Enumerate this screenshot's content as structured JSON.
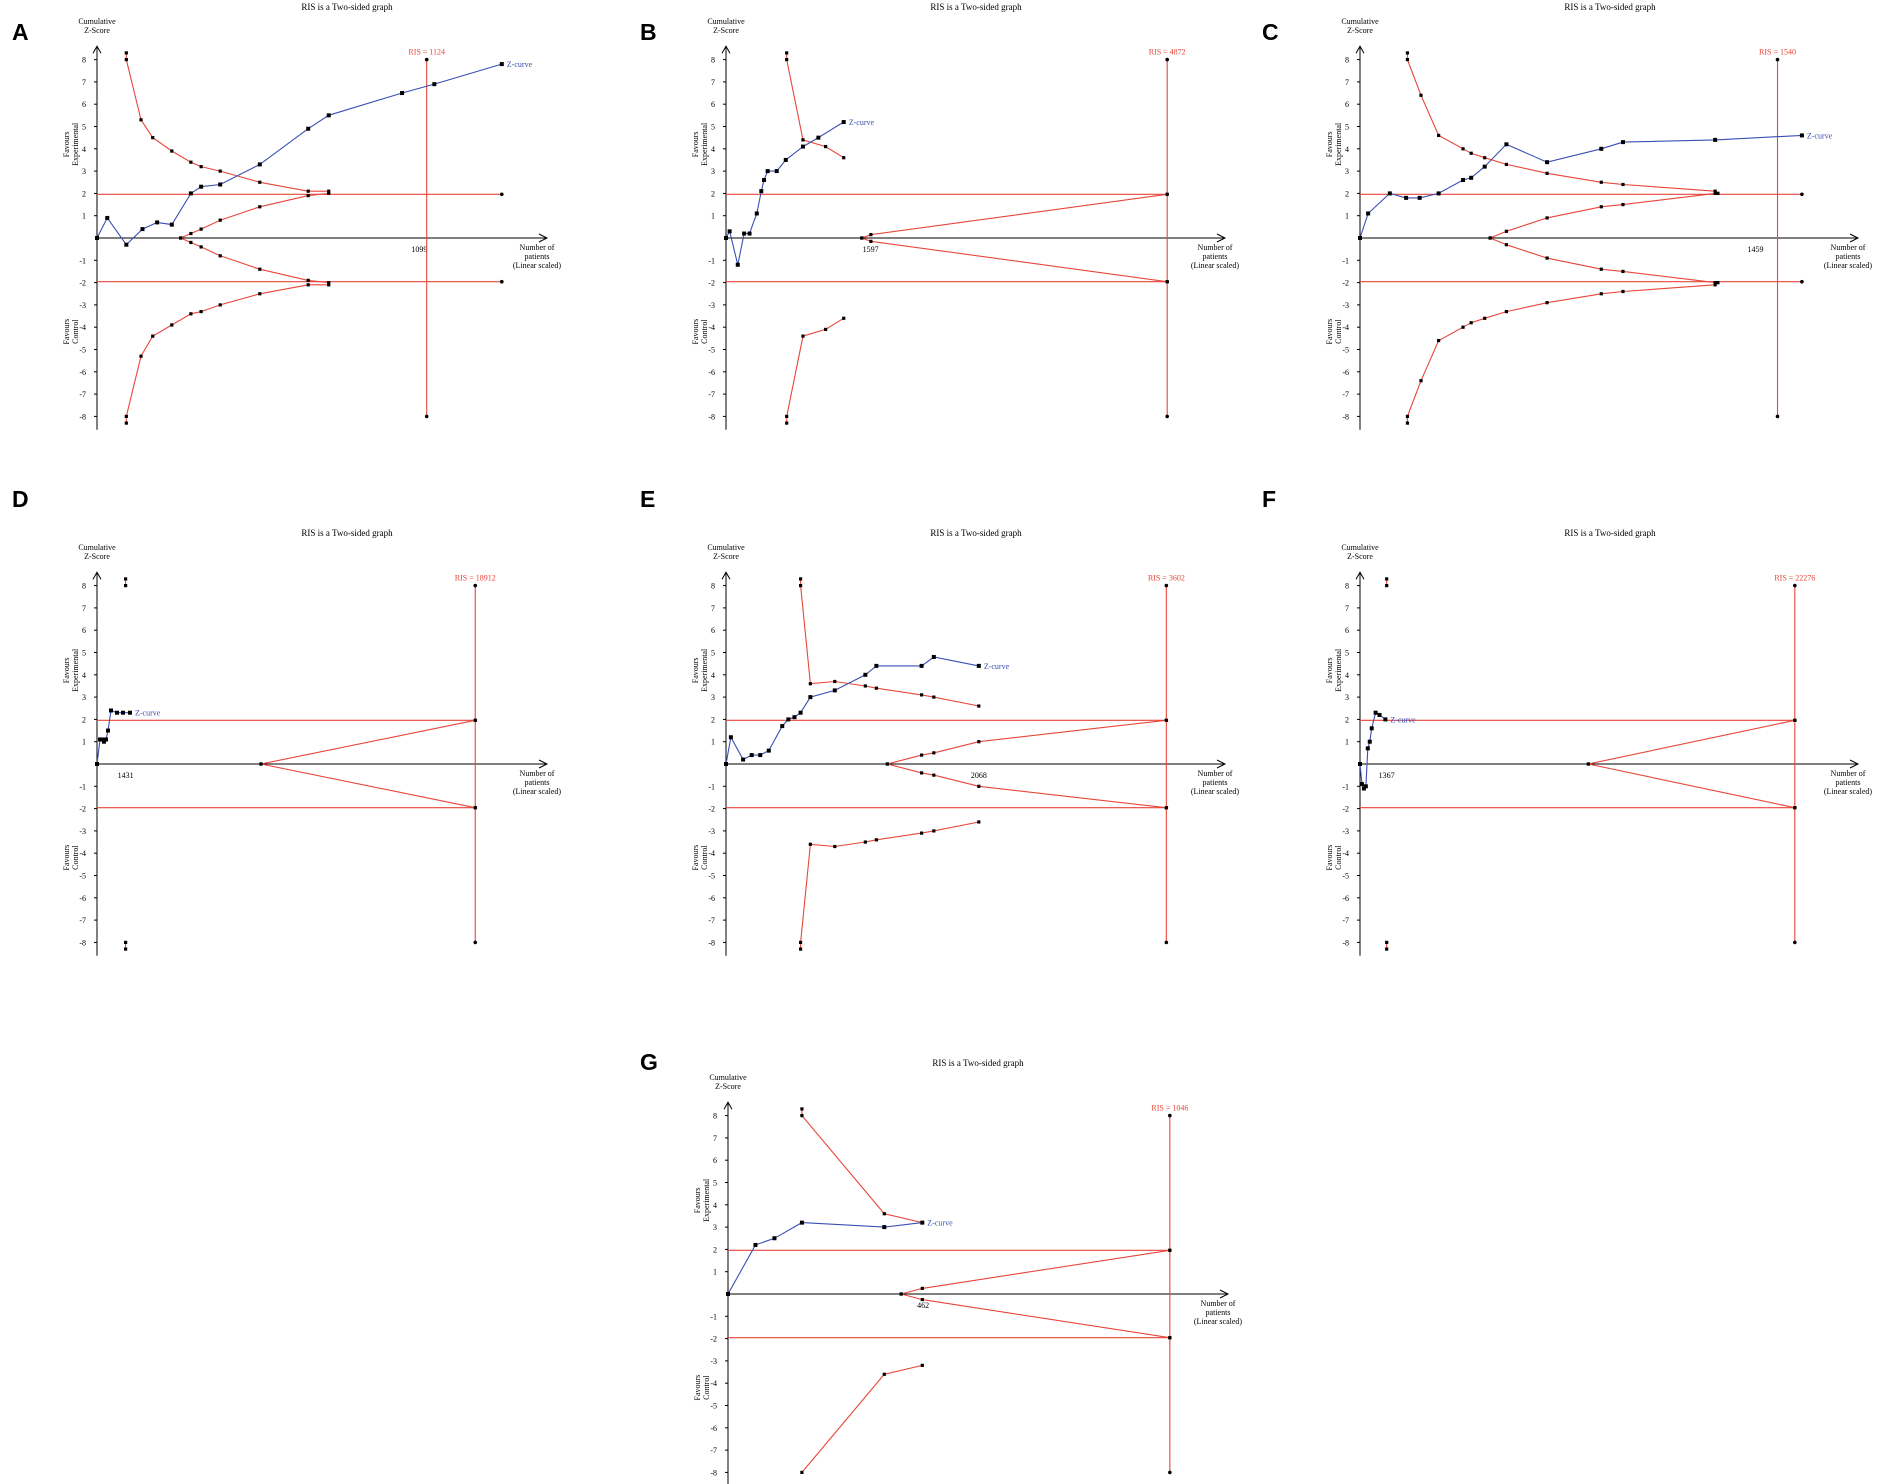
{
  "figure": {
    "common": {
      "title": "RIS is a Two-sided graph",
      "ylabel": [
        "Cumulative",
        "Z-Score"
      ],
      "xlabel": [
        "Number of",
        "patients",
        "(Linear scaled)"
      ],
      "favours_experimental": [
        "Favours",
        "Experimental"
      ],
      "favours_control": [
        "Favours",
        "Control"
      ],
      "zcurve_label": "Z-curve",
      "ytick_labels": [
        "8",
        "7",
        "6",
        "5",
        "4",
        "3",
        "2",
        "1",
        "-1",
        "-2",
        "-3",
        "-4",
        "-5",
        "-6",
        "-7",
        "-8"
      ]
    },
    "colors": {
      "boundary": "#e8463a",
      "zcurve": "#3a4fb4",
      "axis": "#000000"
    }
  },
  "chart_data": [
    {
      "panel": "A",
      "type": "line",
      "ris_label": "RIS = 1124",
      "ris": 1124,
      "x_tick_label": "1099",
      "x_tick": 1099,
      "xmax": 1500,
      "zcurve": [
        [
          0,
          0
        ],
        [
          35,
          0.9
        ],
        [
          100,
          -0.3
        ],
        [
          155,
          0.4
        ],
        [
          205,
          0.7
        ],
        [
          255,
          0.6
        ],
        [
          320,
          2.0
        ],
        [
          355,
          2.3
        ],
        [
          420,
          2.4
        ],
        [
          555,
          3.3
        ],
        [
          720,
          4.9
        ],
        [
          790,
          5.5
        ],
        [
          1040,
          6.5
        ],
        [
          1150,
          6.9
        ],
        [
          1380,
          7.8
        ]
      ],
      "upper_boundary": [
        [
          100,
          8.3
        ],
        [
          100,
          8.0
        ],
        [
          150,
          5.3
        ],
        [
          190,
          4.5
        ],
        [
          255,
          3.9
        ],
        [
          320,
          3.4
        ],
        [
          355,
          3.2
        ],
        [
          420,
          3.0
        ],
        [
          555,
          2.5
        ],
        [
          720,
          2.1
        ],
        [
          790,
          2.1
        ]
      ],
      "lower_boundary": [
        [
          100,
          -8.3
        ],
        [
          100,
          -8.0
        ],
        [
          150,
          -5.3
        ],
        [
          190,
          -4.4
        ],
        [
          255,
          -3.9
        ],
        [
          320,
          -3.4
        ],
        [
          355,
          -3.3
        ],
        [
          420,
          -3.0
        ],
        [
          555,
          -2.5
        ],
        [
          720,
          -2.1
        ],
        [
          790,
          -2.1
        ]
      ],
      "upper_futility": [
        [
          285,
          0
        ],
        [
          320,
          0.2
        ],
        [
          355,
          0.4
        ],
        [
          420,
          0.8
        ],
        [
          555,
          1.4
        ],
        [
          720,
          1.9
        ],
        [
          790,
          2.0
        ]
      ],
      "lower_futility": [
        [
          285,
          0
        ],
        [
          320,
          -0.2
        ],
        [
          355,
          -0.4
        ],
        [
          420,
          -0.8
        ],
        [
          555,
          -1.4
        ],
        [
          720,
          -1.9
        ],
        [
          790,
          -2.0
        ]
      ],
      "significance": 1.96
    },
    {
      "panel": "B",
      "type": "line",
      "ris_label": "RIS = 4872",
      "ris": 4872,
      "x_tick_label": "1597",
      "x_tick": 1597,
      "xmax": 5400,
      "zcurve": [
        [
          0,
          0
        ],
        [
          40,
          0.3
        ],
        [
          130,
          -1.2
        ],
        [
          200,
          0.2
        ],
        [
          260,
          0.2
        ],
        [
          340,
          1.1
        ],
        [
          390,
          2.1
        ],
        [
          420,
          2.6
        ],
        [
          460,
          3.0
        ],
        [
          560,
          3.0
        ],
        [
          660,
          3.5
        ],
        [
          850,
          4.1
        ],
        [
          1020,
          4.5
        ],
        [
          1300,
          5.2
        ]
      ],
      "upper_boundary": [
        [
          670,
          8.3
        ],
        [
          670,
          8.0
        ],
        [
          850,
          4.4
        ],
        [
          1100,
          4.1
        ],
        [
          1300,
          3.6
        ]
      ],
      "lower_boundary": [
        [
          670,
          -8.3
        ],
        [
          670,
          -8.0
        ],
        [
          850,
          -4.4
        ],
        [
          1100,
          -4.1
        ],
        [
          1300,
          -3.6
        ]
      ],
      "upper_futility": [
        [
          1500,
          0
        ],
        [
          1600,
          0.15
        ],
        [
          4872,
          1.96
        ]
      ],
      "lower_futility": [
        [
          1500,
          0
        ],
        [
          1600,
          -0.15
        ],
        [
          4872,
          -1.96
        ]
      ],
      "significance": 1.96
    },
    {
      "panel": "C",
      "type": "line",
      "ris_label": "RIS = 1540",
      "ris": 1540,
      "x_tick_label": "1459",
      "x_tick": 1459,
      "xmax": 1800,
      "zcurve": [
        [
          0,
          0
        ],
        [
          30,
          1.1
        ],
        [
          110,
          2.0
        ],
        [
          170,
          1.8
        ],
        [
          220,
          1.8
        ],
        [
          290,
          2.0
        ],
        [
          380,
          2.6
        ],
        [
          410,
          2.7
        ],
        [
          460,
          3.2
        ],
        [
          540,
          4.2
        ],
        [
          690,
          3.4
        ],
        [
          890,
          4.0
        ],
        [
          970,
          4.3
        ],
        [
          1310,
          4.4
        ],
        [
          1630,
          4.6
        ]
      ],
      "upper_boundary": [
        [
          175,
          8.3
        ],
        [
          175,
          8.0
        ],
        [
          225,
          6.4
        ],
        [
          290,
          4.6
        ],
        [
          380,
          4.0
        ],
        [
          410,
          3.8
        ],
        [
          460,
          3.6
        ],
        [
          540,
          3.3
        ],
        [
          690,
          2.9
        ],
        [
          890,
          2.5
        ],
        [
          970,
          2.4
        ],
        [
          1310,
          2.1
        ],
        [
          1320,
          2.0
        ]
      ],
      "lower_boundary": [
        [
          175,
          -8.3
        ],
        [
          175,
          -8.0
        ],
        [
          225,
          -6.4
        ],
        [
          290,
          -4.6
        ],
        [
          380,
          -4.0
        ],
        [
          410,
          -3.8
        ],
        [
          460,
          -3.6
        ],
        [
          540,
          -3.3
        ],
        [
          690,
          -2.9
        ],
        [
          890,
          -2.5
        ],
        [
          970,
          -2.4
        ],
        [
          1310,
          -2.1
        ],
        [
          1320,
          -2.0
        ]
      ],
      "upper_futility": [
        [
          480,
          0
        ],
        [
          540,
          0.3
        ],
        [
          690,
          0.9
        ],
        [
          890,
          1.4
        ],
        [
          970,
          1.5
        ],
        [
          1310,
          2.0
        ],
        [
          1320,
          2.0
        ]
      ],
      "lower_futility": [
        [
          480,
          0
        ],
        [
          540,
          -0.3
        ],
        [
          690,
          -0.9
        ],
        [
          890,
          -1.4
        ],
        [
          970,
          -1.5
        ],
        [
          1310,
          -2.0
        ],
        [
          1320,
          -2.0
        ]
      ],
      "significance": 1.96
    },
    {
      "panel": "D",
      "type": "line",
      "ris_label": "RIS = 18912",
      "ris": 18912,
      "x_tick_label": "1431",
      "x_tick": 1431,
      "xmax": 22000,
      "zcurve": [
        [
          0,
          0
        ],
        [
          150,
          1.1
        ],
        [
          250,
          1.1
        ],
        [
          350,
          1.0
        ],
        [
          450,
          1.1
        ],
        [
          550,
          1.5
        ],
        [
          700,
          2.4
        ],
        [
          1000,
          2.3
        ],
        [
          1300,
          2.3
        ],
        [
          1650,
          2.3
        ]
      ],
      "upper_boundary": [
        [
          1431,
          8.3
        ],
        [
          1431,
          8.0
        ]
      ],
      "lower_boundary": [
        [
          1431,
          -8.3
        ],
        [
          1431,
          -8.0
        ]
      ],
      "upper_futility": [
        [
          8200,
          0
        ],
        [
          18912,
          1.96
        ]
      ],
      "lower_futility": [
        [
          8200,
          0
        ],
        [
          18912,
          -1.96
        ]
      ],
      "significance": 1.96
    },
    {
      "panel": "E",
      "type": "line",
      "ris_label": "RIS = 3602",
      "ris": 3602,
      "x_tick_label": "2068",
      "x_tick": 2068,
      "xmax": 4000,
      "zcurve": [
        [
          0,
          0
        ],
        [
          40,
          1.2
        ],
        [
          140,
          0.2
        ],
        [
          210,
          0.4
        ],
        [
          280,
          0.4
        ],
        [
          350,
          0.6
        ],
        [
          460,
          1.7
        ],
        [
          510,
          2.0
        ],
        [
          560,
          2.1
        ],
        [
          610,
          2.3
        ],
        [
          690,
          3.0
        ],
        [
          890,
          3.3
        ],
        [
          1140,
          4.0
        ],
        [
          1230,
          4.4
        ],
        [
          1600,
          4.4
        ],
        [
          1700,
          4.8
        ],
        [
          2068,
          4.4
        ]
      ],
      "upper_boundary": [
        [
          610,
          8.3
        ],
        [
          610,
          8.0
        ],
        [
          690,
          3.6
        ],
        [
          890,
          3.7
        ],
        [
          1140,
          3.5
        ],
        [
          1230,
          3.4
        ],
        [
          1600,
          3.1
        ],
        [
          1700,
          3.0
        ],
        [
          2068,
          2.6
        ]
      ],
      "lower_boundary": [
        [
          610,
          -8.3
        ],
        [
          610,
          -8.0
        ],
        [
          690,
          -3.6
        ],
        [
          890,
          -3.7
        ],
        [
          1140,
          -3.5
        ],
        [
          1230,
          -3.4
        ],
        [
          1600,
          -3.1
        ],
        [
          1700,
          -3.0
        ],
        [
          2068,
          -2.6
        ]
      ],
      "upper_futility": [
        [
          1320,
          0
        ],
        [
          1600,
          0.4
        ],
        [
          1700,
          0.5
        ],
        [
          2068,
          1.0
        ],
        [
          3602,
          1.96
        ]
      ],
      "lower_futility": [
        [
          1320,
          0
        ],
        [
          1600,
          -0.4
        ],
        [
          1700,
          -0.5
        ],
        [
          2068,
          -1.0
        ],
        [
          3602,
          -1.96
        ]
      ],
      "significance": 1.96
    },
    {
      "panel": "F",
      "type": "line",
      "ris_label": "RIS = 22276",
      "ris": 22276,
      "x_tick_label": "1367",
      "x_tick": 1367,
      "xmax": 25000,
      "zcurve": [
        [
          0,
          0
        ],
        [
          100,
          -0.9
        ],
        [
          200,
          -1.1
        ],
        [
          300,
          -1.0
        ],
        [
          400,
          0.7
        ],
        [
          500,
          1.0
        ],
        [
          600,
          1.6
        ],
        [
          800,
          2.3
        ],
        [
          1000,
          2.2
        ],
        [
          1300,
          2.0
        ]
      ],
      "upper_boundary": [
        [
          1367,
          8.3
        ],
        [
          1367,
          8.0
        ]
      ],
      "lower_boundary": [
        [
          1367,
          -8.3
        ],
        [
          1367,
          -8.0
        ]
      ],
      "upper_futility": [
        [
          11700,
          0
        ],
        [
          22276,
          1.96
        ]
      ],
      "lower_futility": [
        [
          11700,
          0
        ],
        [
          22276,
          -1.96
        ]
      ],
      "significance": 1.96
    },
    {
      "panel": "G",
      "type": "line",
      "ris_label": "RIS = 1046",
      "ris": 1046,
      "x_tick_label": "462",
      "x_tick": 462,
      "xmax": 1160,
      "zcurve": [
        [
          0,
          0
        ],
        [
          65,
          2.2
        ],
        [
          110,
          2.5
        ],
        [
          175,
          3.2
        ],
        [
          370,
          3.0
        ],
        [
          460,
          3.2
        ]
      ],
      "upper_boundary": [
        [
          175,
          8.3
        ],
        [
          175,
          8.0
        ],
        [
          370,
          3.6
        ],
        [
          460,
          3.2
        ]
      ],
      "lower_boundary": [
        [
          175,
          -8.0
        ],
        [
          370,
          -3.6
        ],
        [
          460,
          -3.2
        ]
      ],
      "upper_futility": [
        [
          410,
          0
        ],
        [
          460,
          0.25
        ],
        [
          1046,
          1.96
        ]
      ],
      "lower_futility": [
        [
          410,
          0
        ],
        [
          460,
          -0.25
        ],
        [
          1046,
          -1.96
        ]
      ],
      "significance": 1.96
    }
  ]
}
